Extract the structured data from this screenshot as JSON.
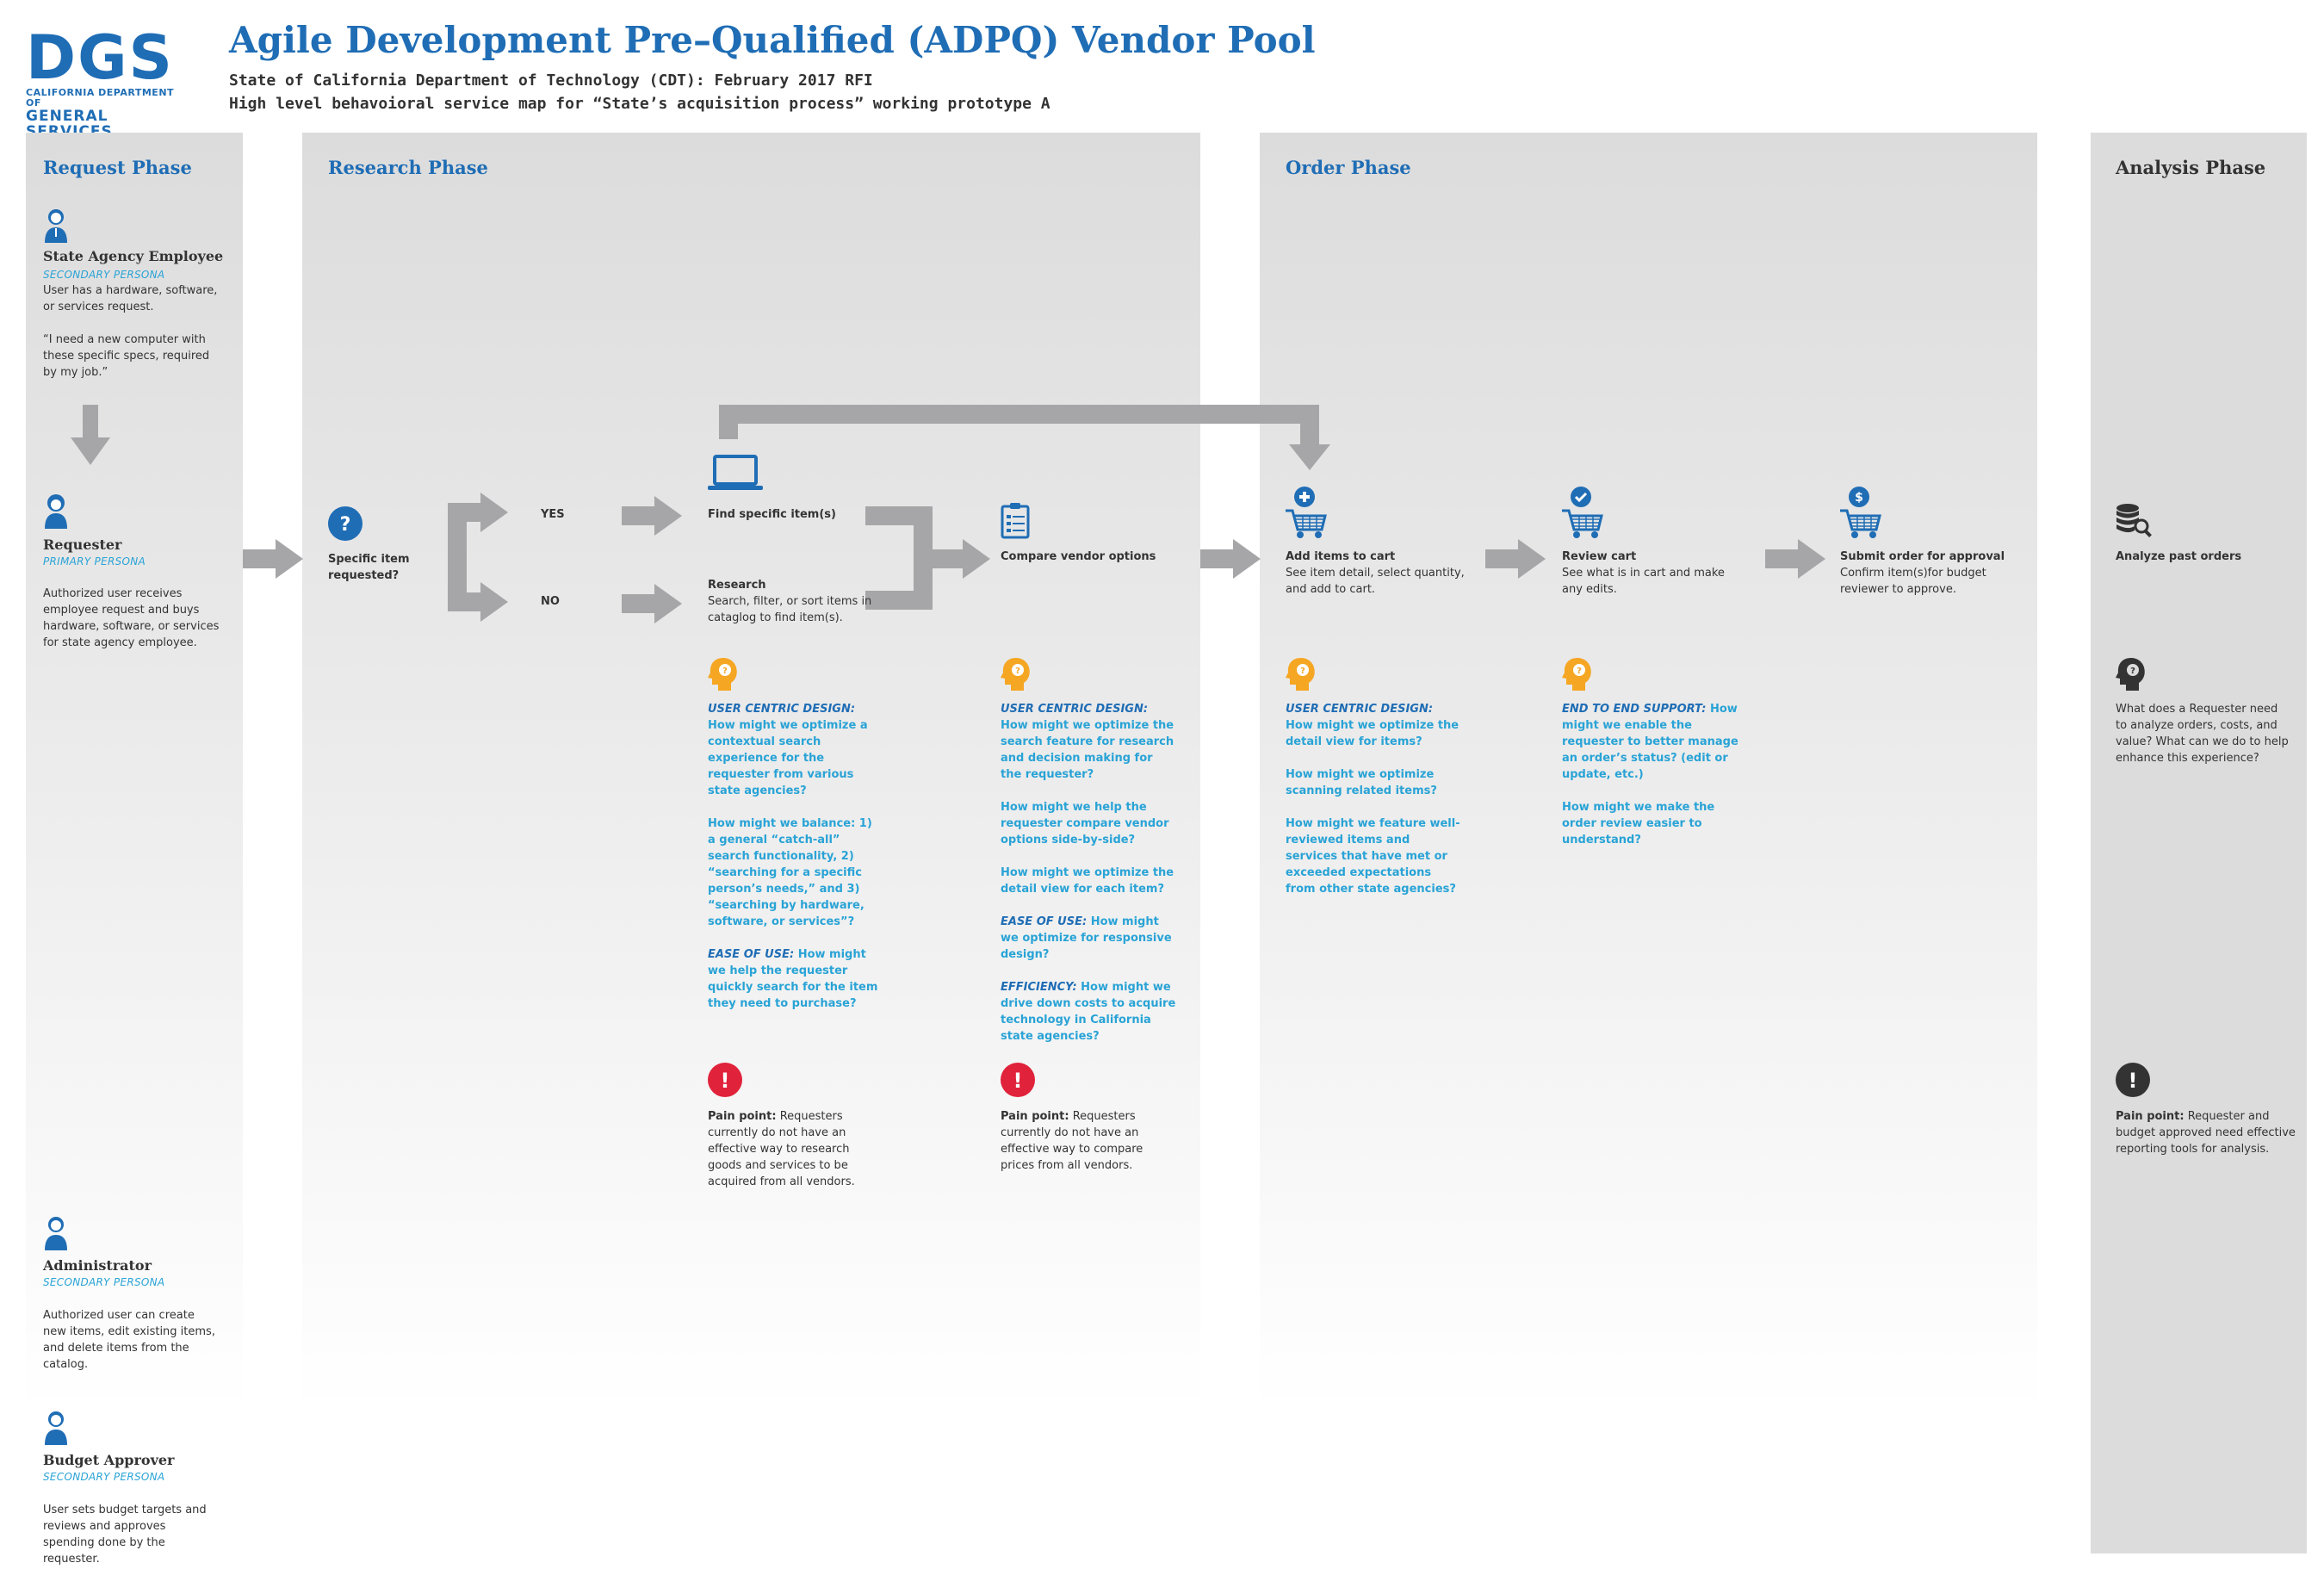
{
  "logo": {
    "main": "DGS",
    "line1": "CALIFORNIA DEPARTMENT OF",
    "line2": "GENERAL SERVICES"
  },
  "header": {
    "title": "Agile Development Pre–Qualified (ADPQ) Vendor Pool",
    "sub1": "State of California Department of Technology (CDT): February 2017 RFI",
    "sub2": "High level behavoioral service map for “State’s acquisition process” working prototype A"
  },
  "phases": {
    "request": "Request Phase",
    "research": "Research Phase",
    "order": "Order Phase",
    "analysis": "Analysis Phase"
  },
  "personas": {
    "employee": {
      "name": "State Agency Employee",
      "role": "SECONDARY PERSONA",
      "desc": "User has a hardware, software, or services request.",
      "quote": "“I need a new computer with these specific specs, required by my job.”"
    },
    "requester": {
      "name": "Requester",
      "role": "PRIMARY PERSONA",
      "desc": "Authorized user receives employee request and buys hardware, software, or services for state agency employee."
    },
    "administrator": {
      "name": "Administrator",
      "role": "SECONDARY PERSONA",
      "desc": "Authorized user can create new items, edit existing items, and delete items from the catalog."
    },
    "approver": {
      "name": "Budget Approver",
      "role": "SECONDARY PERSONA",
      "desc": "User sets budget targets and reviews and approves spending done by the requester."
    }
  },
  "research": {
    "decision": "Specific item requested?",
    "yes": "YES",
    "no": "NO",
    "find_title": "Find specific item(s)",
    "research_title": "Research",
    "research_desc": "Search, filter, or sort items in cataglog to find item(s).",
    "compare_title": "Compare vendor options",
    "q1_label": "USER CENTRIC DESIGN:",
    "q1_text": "How might we optimize a contextual search experience for the requester from various state agencies?",
    "q2": "How might we balance: 1) a general “catch-all” search functionality, 2) “searching for a specific person’s needs,” and 3) “searching by hardware, software, or services”?",
    "q3_label": "EASE OF USE:",
    "q3_text": "How might we help the requester quickly search for the item they need to purchase?",
    "pain_label": "Pain point:",
    "pain_text": "Requesters currently do not have an effective way to research goods and services to be acquired from all vendors.",
    "c1_label": "USER CENTRIC DESIGN:",
    "c1_text": "How might we optimize the search feature for research and decision making for the requester?",
    "c2": "How might we help the requester compare vendor options side-by-side?",
    "c3": "How might we optimize the detail view for each item?",
    "c4_label": "EASE OF USE:",
    "c4_text": "How might we optimize for responsive design?",
    "c5_label": "EFFICIENCY:",
    "c5_text": "How might we drive down costs to acquire technology in California state agencies?",
    "cpain_label": "Pain point:",
    "cpain_text": "Requesters currently do not have an effective way to compare prices from all vendors."
  },
  "order": {
    "add_title": "Add items to cart",
    "add_desc": "See item detail, select quantity, and add to cart.",
    "review_title": "Review cart",
    "review_desc": "See what is in cart and make any edits.",
    "submit_title": "Submit order for approval",
    "submit_desc": "Confirm item(s)for budget reviewer to approve.",
    "a1_label": "USER CENTRIC DESIGN:",
    "a1_text": "How might we optimize the detail view for items?",
    "a2": "How might we optimize scanning related items?",
    "a3": "How might we feature well-reviewed items and services that have met or exceeded expectations from other state agencies?",
    "r1_label": "END TO END SUPPORT:",
    "r1_text": "How might we enable the requester to better manage an order’s status? (edit or update, etc.)",
    "r2": "How might we make the order review easier to understand?"
  },
  "analysis": {
    "title": "Analyze past orders",
    "question": "What does a Requester need to analyze orders, costs, and value? What can we do to help enhance this experience?",
    "pain_label": "Pain point:",
    "pain_text": "Requester and budget approved need effective reporting tools for analysis."
  },
  "colors": {
    "blue": "#1f6db5",
    "cyan": "#29a3d6",
    "yellow": "#f5a623",
    "red": "#e0223a",
    "gray": "#a6a6a8",
    "dark": "#333333"
  }
}
